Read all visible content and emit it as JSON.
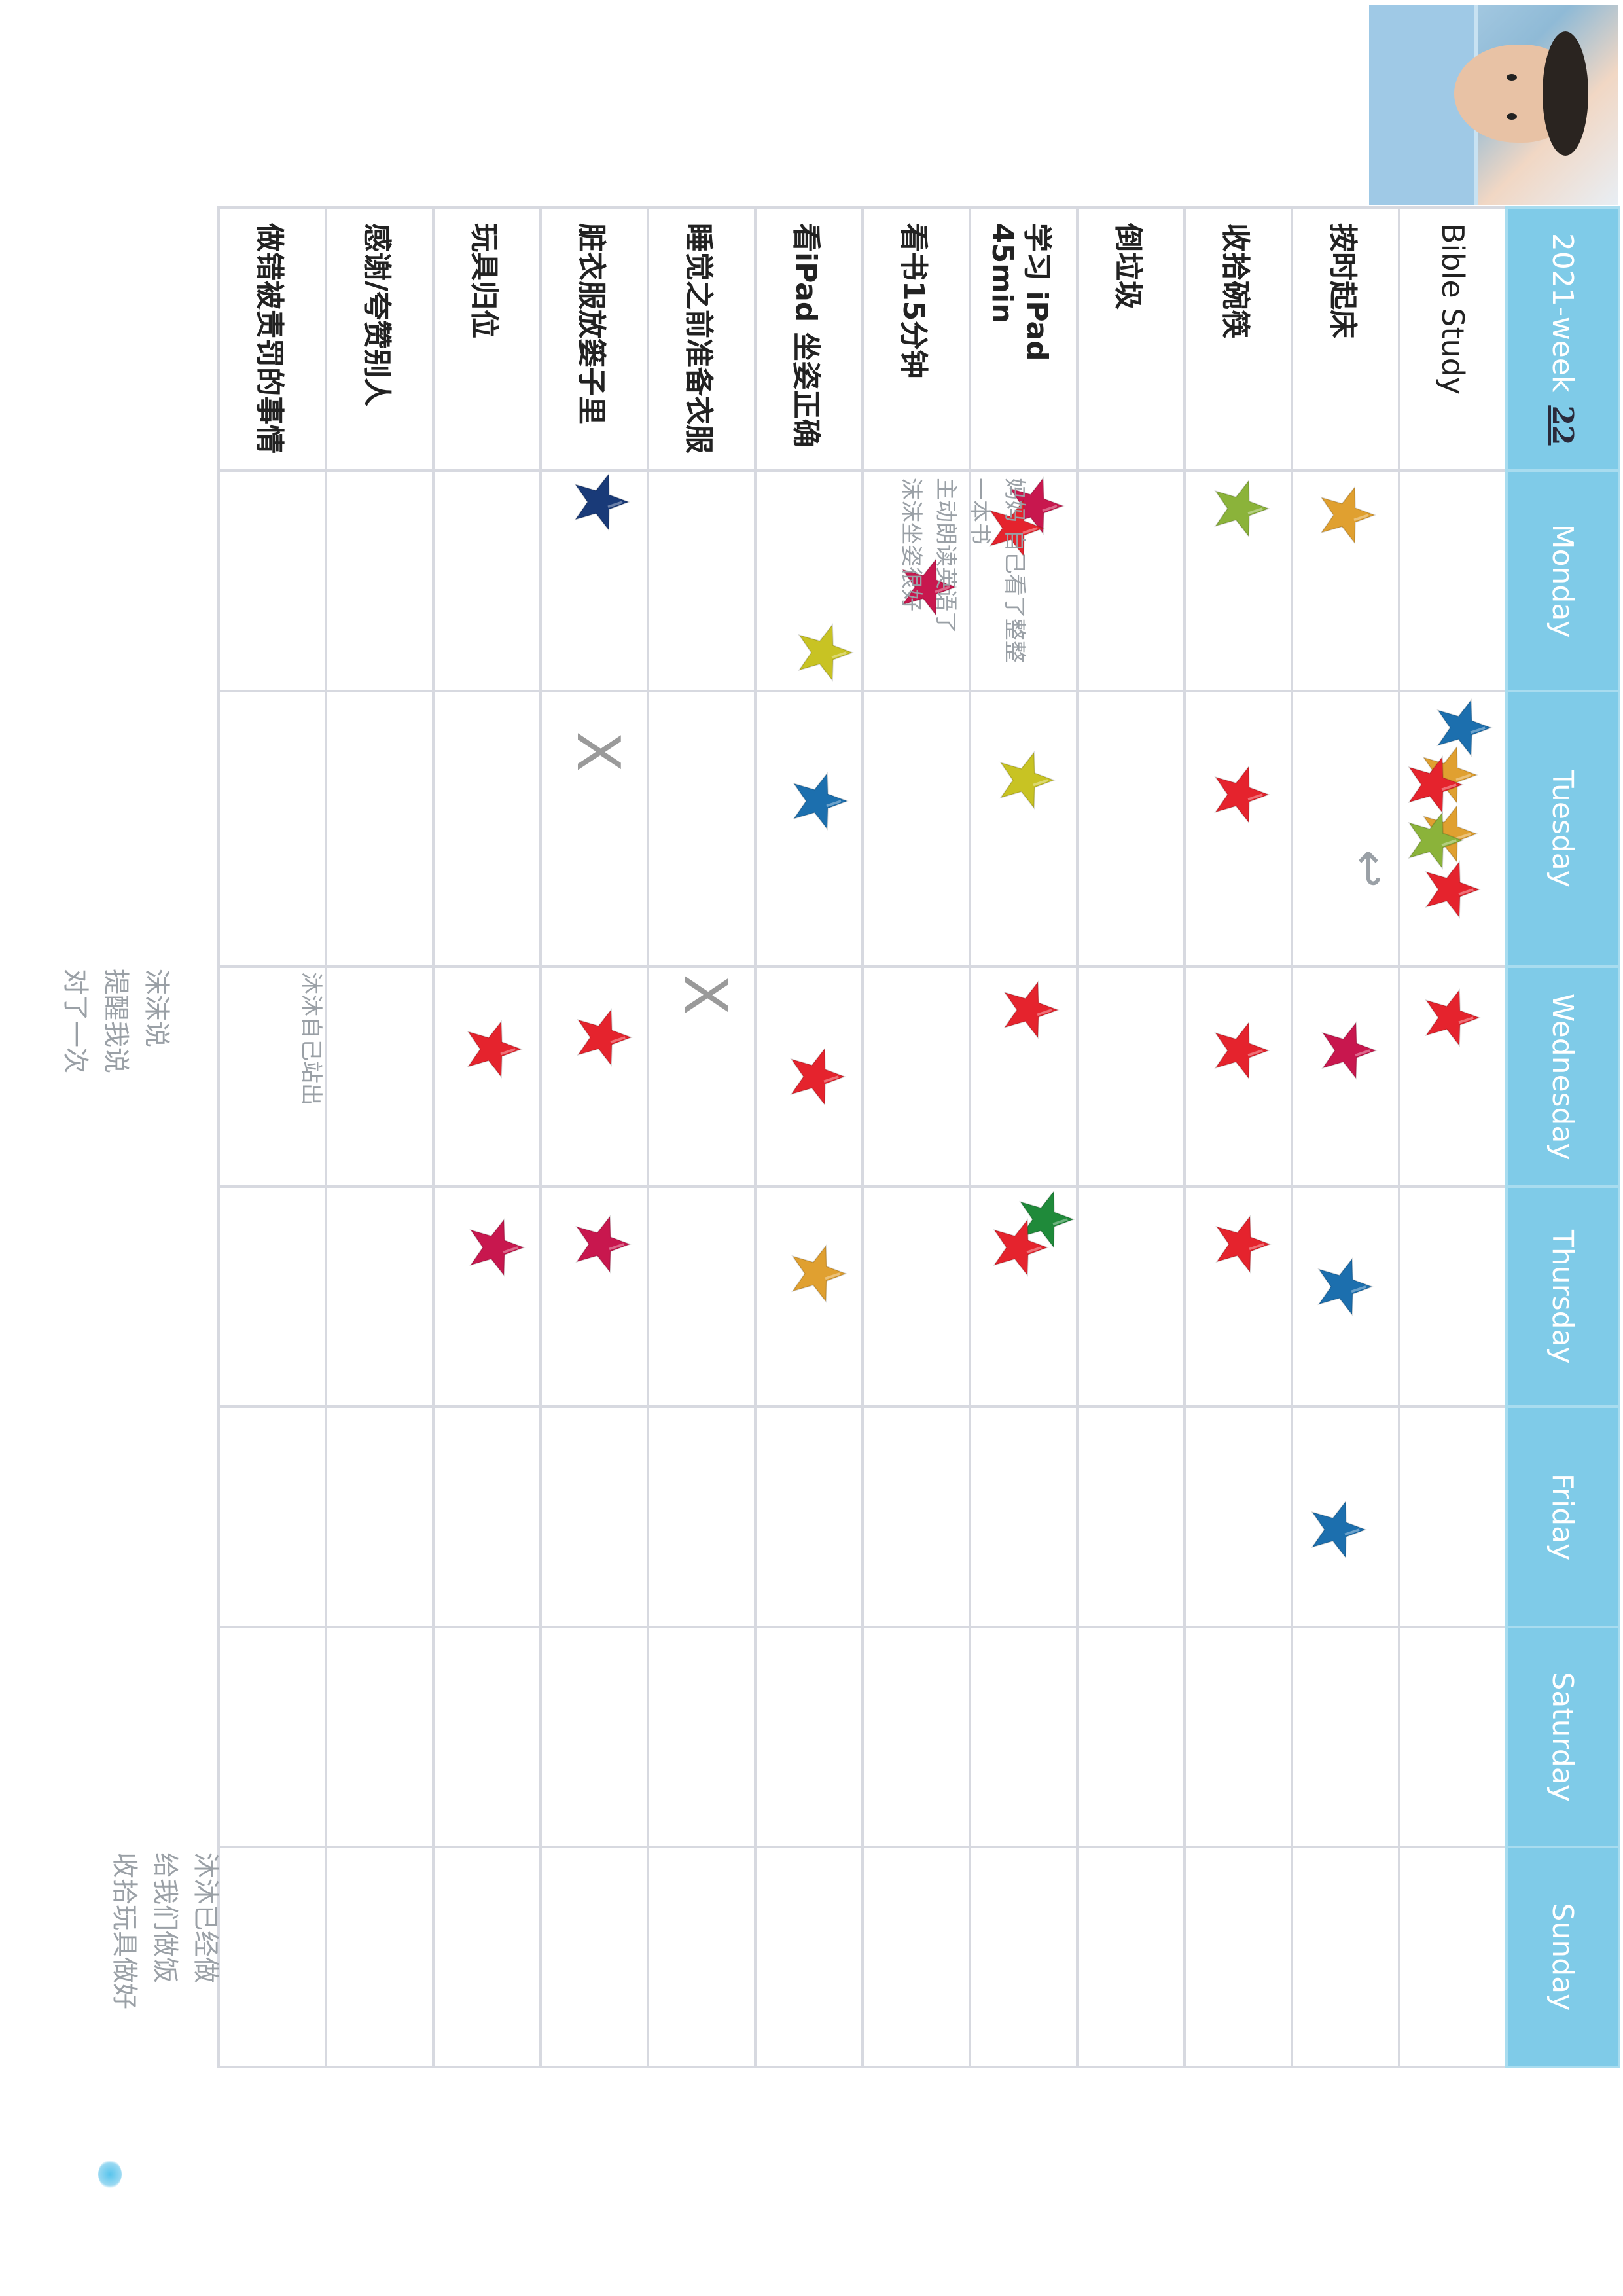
{
  "header": {
    "week_prefix": "2021-week",
    "week_number": "22"
  },
  "days": [
    "Monday",
    "Tuesday",
    "Wednesday",
    "Thursday",
    "Friday",
    "Saturday",
    "Sunday"
  ],
  "tasks": [
    "Bible Study",
    "按时起床",
    "收拾碗筷",
    "倒垃圾",
    "学习 iPad 45min",
    "看书15分钟",
    "看iPad 坐姿正确",
    "睡觉之前准备衣服",
    "脏衣服放篓子里",
    "玩具归位",
    "感谢/夸赞别人",
    "做错被责罚的事情"
  ],
  "star_colors": {
    "red": "#e5232d",
    "magenta": "#c8174e",
    "orange": "#e0a030",
    "blue": "#1c6fae",
    "navy": "#193a78",
    "lime": "#8bb33a",
    "yellow": "#c8c323",
    "green": "#1f8a3a"
  },
  "notes": {
    "monday_reading": [
      "妈妈 自己看了整整",
      "一本书",
      "主动朗读英语了",
      "沫沫坐姿很好"
    ],
    "wednesday_note": "沐沐自己站出",
    "side_left": [
      "沫沫说",
      "提醒我说",
      "对了一次"
    ],
    "side_bottom": [
      "沐沐已经做",
      "给我们做饭",
      "收拾玩具做好"
    ]
  },
  "marks": {
    "cross": "X",
    "arrow": "↩"
  }
}
